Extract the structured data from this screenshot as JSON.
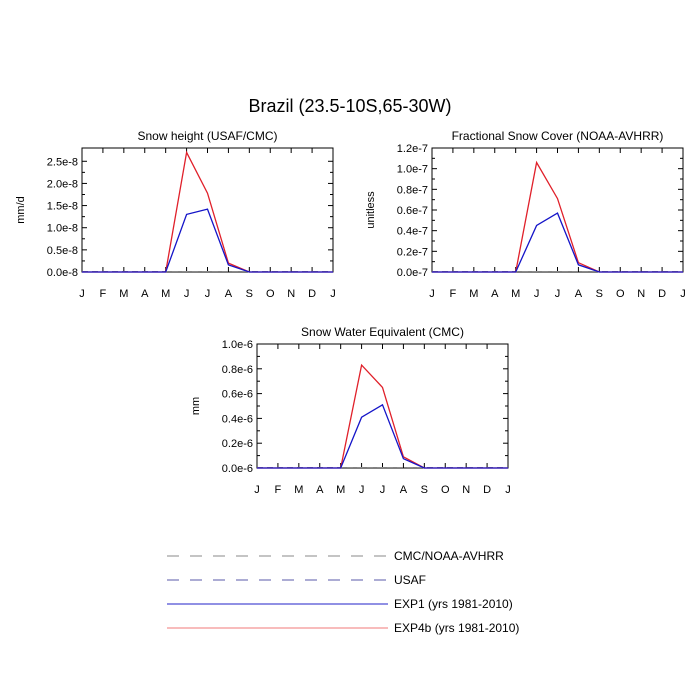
{
  "title": "Brazil (23.5-10S,65-30W)",
  "legend": [
    {
      "label": "CMC/NOAA-AVHRR",
      "color": "#8a8a8a",
      "dash": true
    },
    {
      "label": "USAF",
      "color": "#5a5aa8",
      "dash": true
    },
    {
      "label": "EXP1 (yrs 1981-2010)",
      "color": "#2020c8",
      "dash": false
    },
    {
      "label": "EXP4b (yrs 1981-2010)",
      "color": "#f07a7a",
      "dash": false
    }
  ],
  "chart_data": [
    {
      "type": "line",
      "title": "Snow height (USAF/CMC)",
      "ylabel": "mm/d",
      "xlabel": "",
      "categories": [
        "J",
        "F",
        "M",
        "A",
        "M",
        "J",
        "J",
        "A",
        "S",
        "O",
        "N",
        "D",
        "J"
      ],
      "ylim": [
        0,
        2.8e-08
      ],
      "yticks": [
        0,
        5e-09,
        1e-08,
        1.5e-08,
        2e-08,
        2.5e-08
      ],
      "ytick_labels": [
        "0.0e-8",
        "0.5e-8",
        "1.0e-8",
        "1.5e-8",
        "2.0e-8",
        "2.5e-8"
      ],
      "series": [
        {
          "name": "EXP4b (yrs 1981-2010)",
          "color": "#e0202a",
          "values": [
            0,
            0,
            0,
            0,
            0,
            2.7e-08,
            1.78e-08,
            2e-09,
            0,
            0,
            0,
            0,
            0
          ]
        },
        {
          "name": "EXP1 (yrs 1981-2010)",
          "color": "#1414c8",
          "values": [
            0,
            0,
            0,
            0,
            0,
            1.3e-08,
            1.42e-08,
            1.6e-09,
            0,
            0,
            0,
            0,
            0
          ]
        }
      ]
    },
    {
      "type": "line",
      "title": "Fractional Snow Cover (NOAA-AVHRR)",
      "ylabel": "unitless",
      "xlabel": "",
      "categories": [
        "J",
        "F",
        "M",
        "A",
        "M",
        "J",
        "J",
        "A",
        "S",
        "O",
        "N",
        "D",
        "J"
      ],
      "ylim": [
        0,
        1.2e-07
      ],
      "yticks": [
        0,
        2e-08,
        4e-08,
        6e-08,
        8e-08,
        1e-07,
        1.2e-07
      ],
      "ytick_labels": [
        "0.0e-7",
        "0.2e-7",
        "0.4e-7",
        "0.6e-7",
        "0.8e-7",
        "1.0e-7",
        "1.2e-7"
      ],
      "series": [
        {
          "name": "EXP4b (yrs 1981-2010)",
          "color": "#e0202a",
          "values": [
            0,
            0,
            0,
            0,
            0,
            1.06e-07,
            7.1e-08,
            9e-09,
            0,
            0,
            0,
            0,
            0
          ]
        },
        {
          "name": "EXP1 (yrs 1981-2010)",
          "color": "#1414c8",
          "values": [
            0,
            0,
            0,
            0,
            0,
            4.5e-08,
            5.7e-08,
            7e-09,
            0,
            0,
            0,
            0,
            0
          ]
        }
      ]
    },
    {
      "type": "line",
      "title": "Snow Water Equivalent (CMC)",
      "ylabel": "mm",
      "xlabel": "",
      "categories": [
        "J",
        "F",
        "M",
        "A",
        "M",
        "J",
        "J",
        "A",
        "S",
        "O",
        "N",
        "D",
        "J"
      ],
      "ylim": [
        0,
        1e-06
      ],
      "yticks": [
        0,
        2e-07,
        4e-07,
        6e-07,
        8e-07,
        1e-06
      ],
      "ytick_labels": [
        "0.0e-6",
        "0.2e-6",
        "0.4e-6",
        "0.6e-6",
        "0.8e-6",
        "1.0e-6"
      ],
      "series": [
        {
          "name": "EXP4b (yrs 1981-2010)",
          "color": "#e0202a",
          "values": [
            0,
            0,
            0,
            0,
            0,
            8.3e-07,
            6.5e-07,
            9e-08,
            0,
            0,
            0,
            0,
            0
          ]
        },
        {
          "name": "EXP1 (yrs 1981-2010)",
          "color": "#1414c8",
          "values": [
            0,
            0,
            0,
            0,
            0,
            4.1e-07,
            5.1e-07,
            7.5e-08,
            0,
            0,
            0,
            0,
            0
          ]
        }
      ]
    }
  ]
}
